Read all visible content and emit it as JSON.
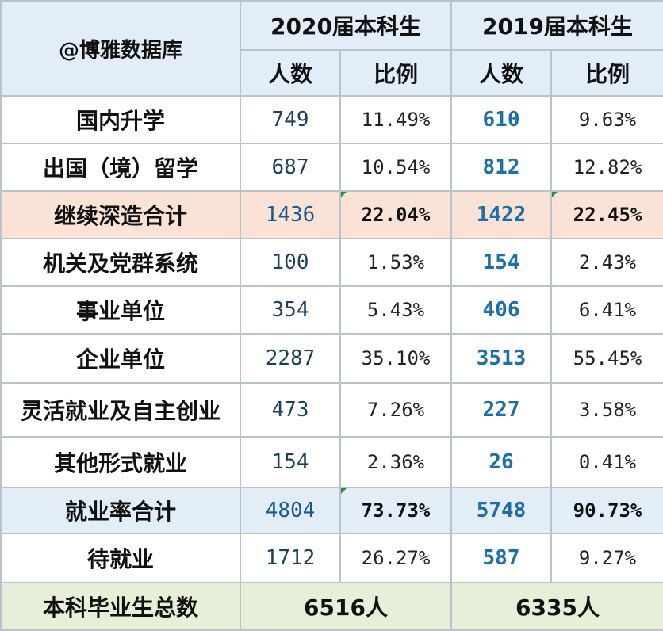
{
  "header": {
    "brand": "@博雅数据库",
    "year_2020": "2020届本科生",
    "year_2019": "2019届本科生",
    "count_label": "人数",
    "ratio_label": "比例"
  },
  "rows": [
    {
      "label": "国内升学",
      "c2020": "749",
      "r2020": "11.49%",
      "c2019": "610",
      "r2019": "9.63%"
    },
    {
      "label": "出国（境）留学",
      "c2020": "687",
      "r2020": "10.54%",
      "c2019": "812",
      "r2019": "12.82%"
    },
    {
      "label": "继续深造合计",
      "c2020": "1436",
      "r2020": "22.04%",
      "c2019": "1422",
      "r2019": "22.45%"
    },
    {
      "label": "机关及党群系统",
      "c2020": "100",
      "r2020": "1.53%",
      "c2019": "154",
      "r2019": "2.43%"
    },
    {
      "label": "事业单位",
      "c2020": "354",
      "r2020": "5.43%",
      "c2019": "406",
      "r2019": "6.41%"
    },
    {
      "label": "企业单位",
      "c2020": "2287",
      "r2020": "35.10%",
      "c2019": "3513",
      "r2019": "55.45%"
    },
    {
      "label": "灵活就业及自主创业",
      "c2020": "473",
      "r2020": "7.26%",
      "c2019": "227",
      "r2019": "3.58%"
    },
    {
      "label": "其他形式就业",
      "c2020": "154",
      "r2020": "2.36%",
      "c2019": "26",
      "r2019": "0.41%"
    },
    {
      "label": "就业率合计",
      "c2020": "4804",
      "r2020": "73.73%",
      "c2019": "5748",
      "r2019": "90.73%"
    },
    {
      "label": "待就业",
      "c2020": "1712",
      "r2020": "26.27%",
      "c2019": "587",
      "r2019": "9.27%"
    }
  ],
  "total": {
    "label": "本科毕业生总数",
    "v2020": "6516人",
    "v2019": "6335人"
  },
  "colors": {
    "header_bg": "#e3edf7",
    "further_study_bg": "#fbe2d6",
    "employment_bg": "#e3edf7",
    "total_bg": "#e7efd9",
    "year_2019_text": "#c00000"
  }
}
